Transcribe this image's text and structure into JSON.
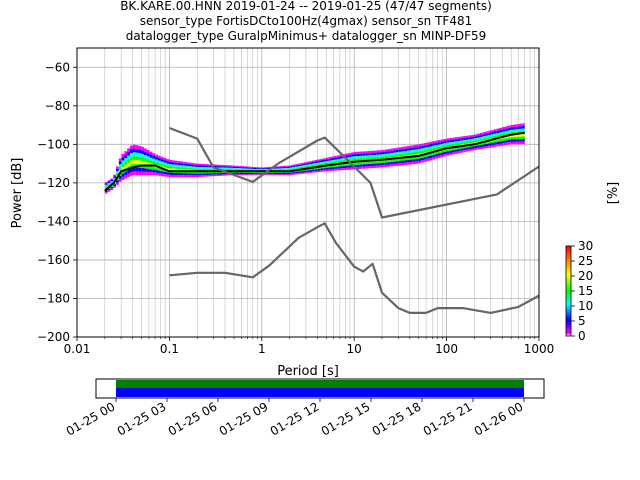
{
  "title_lines": [
    "BK.KARE.00.HNN   2019-01-24 -- 2019-01-25  (47/47 segments)",
    "sensor_type FortisDCto100Hz(4gmax) sensor_sn TF481",
    "datalogger_type GuralpMinimus+ datalogger_sn MINP-DF59"
  ],
  "colorbar": {
    "label": "[%]",
    "ticks": [
      "0",
      "5",
      "10",
      "15",
      "20",
      "25",
      "30"
    ]
  },
  "timeline": {
    "ticks": [
      "01-25 00",
      "01-25 03",
      "01-25 06",
      "01-25 09",
      "01-25 12",
      "01-25 15",
      "01-25 18",
      "01-25 21",
      "01-26 00"
    ],
    "bar_colors": {
      "top": "#008000",
      "bottom": "#0000ff"
    }
  },
  "chart_data": {
    "type": "line",
    "title": "BK.KARE.00.HNN   2019-01-24 -- 2019-01-25  (47/47 segments)",
    "xlabel": "Period [s]",
    "ylabel": "Power [dB]",
    "xscale": "log",
    "xlim": [
      0.01,
      1000
    ],
    "ylim": [
      -200,
      -50
    ],
    "grid": true,
    "xticks": [
      0.01,
      0.1,
      1,
      10,
      100,
      1000
    ],
    "xtick_labels": [
      "0.01",
      "0.1",
      "1",
      "10",
      "100",
      "1000"
    ],
    "yticks": [
      -200,
      -180,
      -160,
      -140,
      -120,
      -100,
      -80,
      -60
    ],
    "ytick_labels": [
      "−200",
      "−180",
      "−160",
      "−140",
      "−120",
      "−100",
      "−80",
      "−60"
    ],
    "series": [
      {
        "color": "#000000",
        "x": [
          0.02,
          0.025,
          0.03,
          0.04,
          0.05,
          0.07,
          0.1,
          0.2,
          0.5,
          1,
          2,
          5,
          10,
          20,
          50,
          100,
          200,
          500,
          700
        ],
        "y": [
          -124,
          -120,
          -114,
          -112,
          -111,
          -111,
          -114,
          -114,
          -114,
          -114,
          -114,
          -111,
          -109,
          -108,
          -106,
          -102,
          -100,
          -95,
          -94
        ]
      },
      {
        "color": "#666666",
        "x": [
          0.1,
          0.2,
          0.3,
          0.8,
          1.5,
          4,
          4.8,
          6,
          15,
          20,
          350,
          1000
        ],
        "y": [
          -91.5,
          -97,
          -112,
          -119.5,
          -110,
          -98,
          -96.5,
          -101,
          -120,
          -138,
          -126,
          -111.5
        ]
      },
      {
        "color": "#666666",
        "x": [
          0.1,
          0.2,
          0.4,
          0.8,
          1.2,
          2.5,
          4,
          4.8,
          6.3,
          10,
          12.5,
          15.8,
          20,
          30,
          40,
          60,
          80,
          100,
          150,
          300,
          600,
          1000
        ],
        "y": [
          -168,
          -166.7,
          -166.7,
          -169,
          -163,
          -148.5,
          -143,
          -141,
          -151,
          -163.5,
          -166,
          -162,
          -177,
          -185,
          -187.5,
          -187.5,
          -185,
          -185,
          -185,
          -187.5,
          -184.4,
          -178.5
        ]
      }
    ],
    "ppsd_band": {
      "x": [
        0.02,
        0.025,
        0.03,
        0.04,
        0.05,
        0.07,
        0.1,
        0.2,
        0.5,
        1,
        2,
        5,
        10,
        20,
        50,
        100,
        200,
        500,
        700
      ],
      "y_low": [
        -126,
        -123,
        -119,
        -116,
        -116,
        -116,
        -117,
        -117,
        -116,
        -116,
        -116,
        -114,
        -113,
        -112,
        -110,
        -106,
        -103,
        -100,
        -100
      ],
      "y_high": [
        -120,
        -117,
        -106,
        -100,
        -101,
        -105,
        -108,
        -110,
        -111,
        -112,
        -111,
        -107,
        -104,
        -103,
        -100,
        -97,
        -95,
        -90,
        -89
      ]
    }
  }
}
